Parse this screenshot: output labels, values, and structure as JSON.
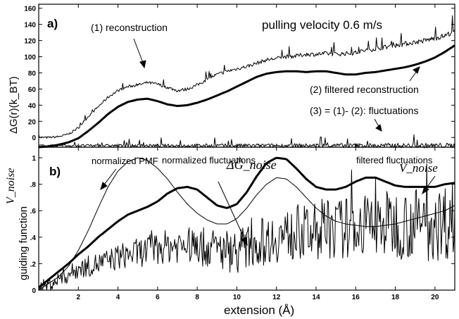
{
  "chart_data": [
    {
      "panel": "a)",
      "type": "line",
      "ylabel": "ΔG(r)(k_BT)",
      "ylim": [
        -12,
        165
      ],
      "yticks": [
        0,
        20,
        40,
        60,
        80,
        100,
        120,
        140,
        160
      ],
      "xlim": [
        0,
        21
      ],
      "title_note": "pulling velocity 0.6 m/s",
      "annotations": [
        "(1) reconstruction",
        "(2) filtered reconstruction",
        "(3) = (1)- (2): fluctuations"
      ],
      "series": [
        {
          "name": "(1) reconstruction",
          "kind": "noisy",
          "x": [
            0,
            0.5,
            1,
            1.5,
            2,
            2.5,
            3,
            3.5,
            4,
            4.5,
            5,
            5.5,
            6,
            6.5,
            7,
            7.5,
            8,
            8.5,
            9,
            9.5,
            10,
            10.5,
            11,
            11.5,
            12,
            12.5,
            13,
            13.5,
            14,
            14.5,
            15,
            15.5,
            16,
            16.5,
            17,
            17.5,
            18,
            18.5,
            19,
            19.5,
            20,
            20.5,
            21
          ],
          "y": [
            0,
            0,
            1,
            4,
            12,
            26,
            38,
            50,
            58,
            63,
            65,
            68,
            66,
            62,
            58,
            60,
            65,
            72,
            78,
            82,
            85,
            88,
            92,
            96,
            98,
            100,
            101,
            103,
            103,
            104,
            103,
            104,
            105,
            108,
            110,
            112,
            114,
            116,
            118,
            120,
            123,
            126,
            132
          ]
        },
        {
          "name": "(2) filtered reconstruction",
          "kind": "bold",
          "x": [
            0,
            0.5,
            1,
            1.5,
            2,
            2.5,
            3,
            3.5,
            4,
            4.5,
            5,
            5.5,
            6,
            6.5,
            7,
            7.5,
            8,
            8.5,
            9,
            9.5,
            10,
            10.5,
            11,
            11.5,
            12,
            12.5,
            13,
            13.5,
            14,
            14.5,
            15,
            15.5,
            16,
            16.5,
            17,
            17.5,
            18,
            18.5,
            19,
            19.5,
            20,
            20.5,
            21
          ],
          "y": [
            -12,
            -11,
            -9,
            -6,
            -1,
            8,
            18,
            29,
            38,
            44,
            47,
            48,
            45,
            41,
            39,
            40,
            43,
            47,
            52,
            57,
            63,
            69,
            75,
            79,
            81,
            82,
            82,
            81,
            82,
            82,
            80,
            78,
            78,
            80,
            81,
            83,
            85,
            87,
            90,
            94,
            99,
            106,
            114
          ]
        },
        {
          "name": "(3) fluctuations",
          "kind": "noisy",
          "x": [
            0,
            21
          ],
          "y": [
            -10,
            -10
          ]
        }
      ]
    },
    {
      "panel": "b)",
      "type": "line",
      "xlabel": "extension (Å)",
      "ylabel": "guiding function",
      "ylim": [
        0,
        1.08
      ],
      "yticks": [
        0,
        0.2,
        0.4,
        0.6,
        0.8,
        1
      ],
      "ytick_labels": [
        "0",
        ".2",
        ".4",
        ".6",
        ".8",
        "1"
      ],
      "xlim": [
        0,
        21
      ],
      "xticks": [
        2,
        4,
        6,
        8,
        10,
        12,
        14,
        16,
        18,
        20
      ],
      "annotations": [
        "normalized PMF",
        "normalized fluctuations",
        "filtered fluctuations",
        "ΔĜ_noise",
        "V_noise",
        "V_noise"
      ],
      "series": [
        {
          "name": "normalized PMF",
          "kind": "thin",
          "x": [
            0,
            0.5,
            1,
            1.5,
            2,
            2.5,
            3,
            3.5,
            4,
            4.5,
            5,
            5.5,
            6,
            6.5,
            7,
            7.5,
            8,
            8.5,
            9,
            9.5,
            10,
            10.5,
            11,
            11.5,
            12,
            12.5,
            13,
            13.5,
            14,
            14.5,
            15,
            15.5,
            16,
            16.5,
            17,
            17.5,
            18,
            18.5,
            19,
            19.5,
            20,
            20.5,
            21
          ],
          "y": [
            0,
            0.05,
            0.1,
            0.18,
            0.3,
            0.45,
            0.62,
            0.78,
            0.9,
            0.97,
            1.0,
            0.98,
            0.92,
            0.84,
            0.74,
            0.65,
            0.58,
            0.53,
            0.5,
            0.5,
            0.54,
            0.62,
            0.72,
            0.8,
            0.85,
            0.84,
            0.78,
            0.7,
            0.62,
            0.56,
            0.52,
            0.5,
            0.49,
            0.48,
            0.48,
            0.49,
            0.5,
            0.52,
            0.54,
            0.56,
            0.58,
            0.6,
            0.64
          ]
        },
        {
          "name": "filtered fluctuations",
          "kind": "bold",
          "x": [
            0,
            0.5,
            1,
            1.5,
            2,
            2.5,
            3,
            3.5,
            4,
            4.5,
            5,
            5.5,
            6,
            6.5,
            7,
            7.5,
            8,
            8.5,
            9,
            9.5,
            10,
            10.5,
            11,
            11.5,
            12,
            12.5,
            13,
            13.5,
            14,
            14.5,
            15,
            15.5,
            16,
            16.5,
            17,
            17.5,
            18,
            18.5,
            19,
            19.5,
            20,
            20.5,
            21
          ],
          "y": [
            0.02,
            0.08,
            0.14,
            0.2,
            0.27,
            0.33,
            0.4,
            0.46,
            0.52,
            0.57,
            0.6,
            0.63,
            0.67,
            0.73,
            0.77,
            0.78,
            0.76,
            0.7,
            0.64,
            0.62,
            0.65,
            0.74,
            0.86,
            0.96,
            1.0,
            0.99,
            0.92,
            0.84,
            0.78,
            0.76,
            0.76,
            0.78,
            0.82,
            0.85,
            0.85,
            0.82,
            0.79,
            0.78,
            0.78,
            0.78,
            0.78,
            0.8,
            0.81
          ]
        },
        {
          "name": "normalized fluctuations",
          "kind": "noisy",
          "x": [
            0,
            0.5,
            1,
            1.5,
            2,
            2.5,
            3,
            3.5,
            4,
            4.5,
            5,
            5.5,
            6,
            6.5,
            7,
            7.5,
            8,
            8.5,
            9,
            9.5,
            10,
            10.5,
            11,
            11.5,
            12,
            12.5,
            13,
            13.5,
            14,
            14.5,
            15,
            15.5,
            16,
            16.5,
            17,
            17.5,
            18,
            18.5,
            19,
            19.5,
            20,
            20.5,
            21
          ],
          "y": [
            0.02,
            0.04,
            0.08,
            0.12,
            0.16,
            0.18,
            0.2,
            0.22,
            0.25,
            0.27,
            0.28,
            0.3,
            0.32,
            0.33,
            0.34,
            0.34,
            0.33,
            0.32,
            0.31,
            0.3,
            0.3,
            0.32,
            0.35,
            0.38,
            0.4,
            0.41,
            0.42,
            0.43,
            0.44,
            0.45,
            0.46,
            0.47,
            0.48,
            0.49,
            0.5,
            0.5,
            0.5,
            0.5,
            0.5,
            0.5,
            0.5,
            0.52,
            0.55
          ]
        }
      ]
    }
  ]
}
